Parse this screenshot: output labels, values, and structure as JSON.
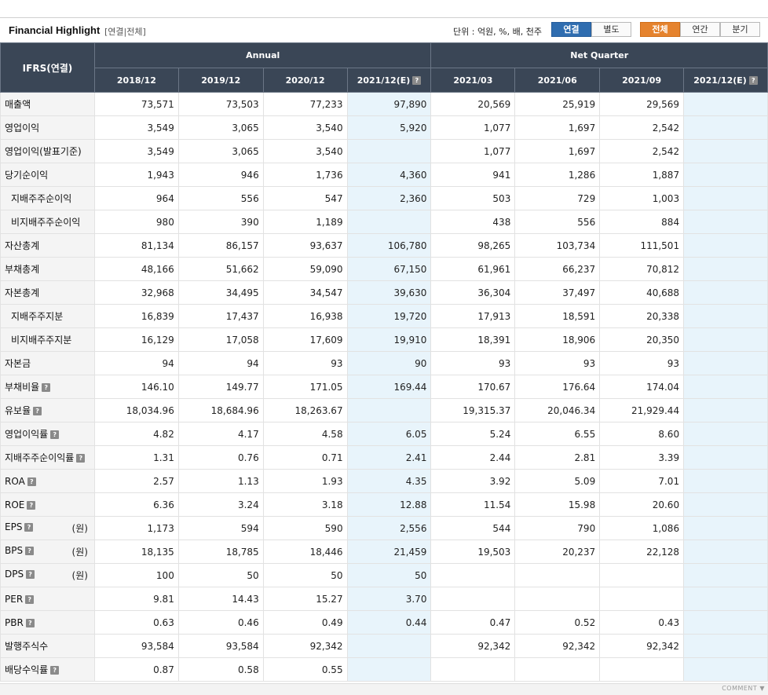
{
  "header": {
    "title": "Financial Highlight",
    "subtitle": "[연결|전체]",
    "unit_text": "단위 : 억원, %, 배, 천주",
    "scope_buttons": [
      {
        "label": "연결",
        "active": true
      },
      {
        "label": "별도",
        "active": false
      }
    ],
    "period_buttons": [
      {
        "label": "전체",
        "active": true
      },
      {
        "label": "연간",
        "active": false
      },
      {
        "label": "분기",
        "active": false
      }
    ]
  },
  "table": {
    "corner": "IFRS(연결)",
    "groups": {
      "annual": "Annual",
      "quarter": "Net Quarter"
    },
    "columns": [
      "2018/12",
      "2019/12",
      "2020/12",
      "2021/12(E)",
      "2021/03",
      "2021/06",
      "2021/09",
      "2021/12(E)"
    ],
    "rows": [
      {
        "label": "매출액",
        "values": [
          "73,571",
          "73,503",
          "77,233",
          "97,890",
          "20,569",
          "25,919",
          "29,569",
          ""
        ]
      },
      {
        "label": "영업이익",
        "values": [
          "3,549",
          "3,065",
          "3,540",
          "5,920",
          "1,077",
          "1,697",
          "2,542",
          ""
        ]
      },
      {
        "label": "영업이익(발표기준)",
        "values": [
          "3,549",
          "3,065",
          "3,540",
          "",
          "1,077",
          "1,697",
          "2,542",
          ""
        ]
      },
      {
        "label": "당기순이익",
        "values": [
          "1,943",
          "946",
          "1,736",
          "4,360",
          "941",
          "1,286",
          "1,887",
          ""
        ]
      },
      {
        "label": "지배주주순이익",
        "indent": true,
        "values": [
          "964",
          "556",
          "547",
          "2,360",
          "503",
          "729",
          "1,003",
          ""
        ]
      },
      {
        "label": "비지배주주순이익",
        "indent": true,
        "values": [
          "980",
          "390",
          "1,189",
          "",
          "438",
          "556",
          "884",
          ""
        ]
      },
      {
        "label": "자산총계",
        "values": [
          "81,134",
          "86,157",
          "93,637",
          "106,780",
          "98,265",
          "103,734",
          "111,501",
          ""
        ]
      },
      {
        "label": "부채총계",
        "values": [
          "48,166",
          "51,662",
          "59,090",
          "67,150",
          "61,961",
          "66,237",
          "70,812",
          ""
        ]
      },
      {
        "label": "자본총계",
        "values": [
          "32,968",
          "34,495",
          "34,547",
          "39,630",
          "36,304",
          "37,497",
          "40,688",
          ""
        ]
      },
      {
        "label": "지배주주지분",
        "indent": true,
        "values": [
          "16,839",
          "17,437",
          "16,938",
          "19,720",
          "17,913",
          "18,591",
          "20,338",
          ""
        ]
      },
      {
        "label": "비지배주주지분",
        "indent": true,
        "values": [
          "16,129",
          "17,058",
          "17,609",
          "19,910",
          "18,391",
          "18,906",
          "20,350",
          ""
        ]
      },
      {
        "label": "자본금",
        "values": [
          "94",
          "94",
          "93",
          "90",
          "93",
          "93",
          "93",
          ""
        ]
      },
      {
        "label": "부채비율",
        "help": true,
        "values": [
          "146.10",
          "149.77",
          "171.05",
          "169.44",
          "170.67",
          "176.64",
          "174.04",
          ""
        ]
      },
      {
        "label": "유보율",
        "help": true,
        "values": [
          "18,034.96",
          "18,684.96",
          "18,263.67",
          "",
          "19,315.37",
          "20,046.34",
          "21,929.44",
          ""
        ]
      },
      {
        "label": "영업이익률",
        "help": true,
        "values": [
          "4.82",
          "4.17",
          "4.58",
          "6.05",
          "5.24",
          "6.55",
          "8.60",
          ""
        ]
      },
      {
        "label": "지배주주순이익률",
        "help": true,
        "values": [
          "1.31",
          "0.76",
          "0.71",
          "2.41",
          "2.44",
          "2.81",
          "3.39",
          ""
        ]
      },
      {
        "label": "ROA",
        "help": true,
        "values": [
          "2.57",
          "1.13",
          "1.93",
          "4.35",
          "3.92",
          "5.09",
          "7.01",
          ""
        ]
      },
      {
        "label": "ROE",
        "help": true,
        "values": [
          "6.36",
          "3.24",
          "3.18",
          "12.88",
          "11.54",
          "15.98",
          "20.60",
          ""
        ]
      },
      {
        "label": "EPS",
        "help": true,
        "unit": "(원)",
        "values": [
          "1,173",
          "594",
          "590",
          "2,556",
          "544",
          "790",
          "1,086",
          ""
        ]
      },
      {
        "label": "BPS",
        "help": true,
        "unit": "(원)",
        "values": [
          "18,135",
          "18,785",
          "18,446",
          "21,459",
          "19,503",
          "20,237",
          "22,128",
          ""
        ]
      },
      {
        "label": "DPS",
        "help": true,
        "unit": "(원)",
        "values": [
          "100",
          "50",
          "50",
          "50",
          "",
          "",
          "",
          ""
        ]
      },
      {
        "label": "PER",
        "help": true,
        "values": [
          "9.81",
          "14.43",
          "15.27",
          "3.70",
          "",
          "",
          "",
          ""
        ]
      },
      {
        "label": "PBR",
        "help": true,
        "values": [
          "0.63",
          "0.46",
          "0.49",
          "0.44",
          "0.47",
          "0.52",
          "0.43",
          ""
        ]
      },
      {
        "label": "발행주식수",
        "values": [
          "93,584",
          "93,584",
          "92,342",
          "",
          "92,342",
          "92,342",
          "92,342",
          ""
        ]
      },
      {
        "label": "배당수익률",
        "help": true,
        "values": [
          "0.87",
          "0.58",
          "0.55",
          "",
          "",
          "",
          "",
          ""
        ]
      }
    ]
  },
  "footer": {
    "comment_label": "COMMENT ▼"
  }
}
